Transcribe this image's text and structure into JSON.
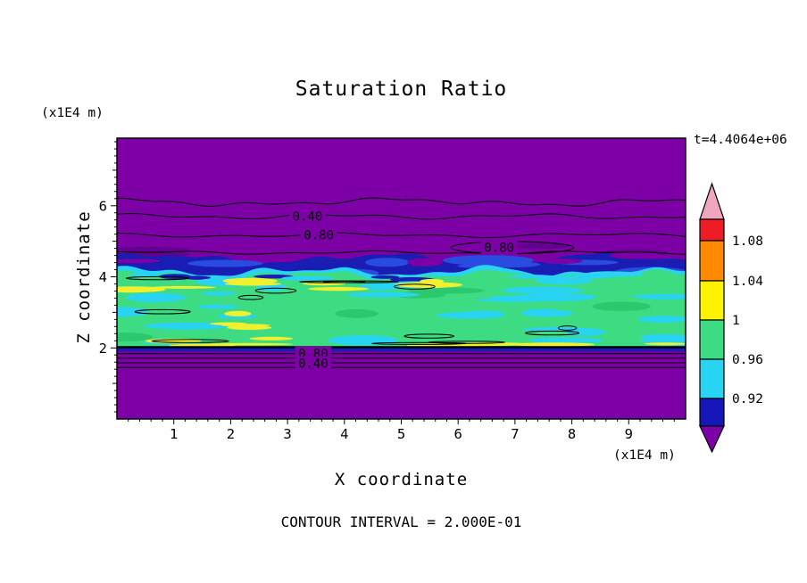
{
  "chart_data": {
    "type": "contour",
    "title": "Saturation Ratio",
    "xlabel": "X coordinate",
    "ylabel": "Z coordinate",
    "x_axis_unit": "(x1E4 m)",
    "y_axis_unit": "(x1E4 m)",
    "time_annotation": "t=4.4064e+06",
    "footnote": "CONTOUR INTERVAL = 2.000E-01",
    "contour_interval": 0.2,
    "x_range": [
      0,
      10
    ],
    "z_range": [
      0,
      7.9
    ],
    "x_ticks": [
      1,
      2,
      3,
      4,
      5,
      6,
      7,
      8,
      9
    ],
    "z_ticks": [
      2,
      4,
      6
    ],
    "line_contour_labels": [
      {
        "text": "0.40",
        "u": 3.35,
        "z": 5.7
      },
      {
        "text": "0.80",
        "u": 3.55,
        "z": 5.17
      },
      {
        "text": "0.80",
        "u": 6.72,
        "z": 4.82
      },
      {
        "text": "0.80",
        "u": 3.45,
        "z": 1.84
      },
      {
        "text": "0.40",
        "u": 3.45,
        "z": 1.56
      }
    ],
    "upper_contour_line_levels": [
      6.1,
      5.7,
      5.17,
      4.68
    ],
    "lower_contour_line_levels": [
      2.02,
      1.84,
      1.71,
      1.58,
      1.45
    ],
    "bands": {
      "green_band_z": [
        2.03,
        4.05
      ],
      "navy_band_z": [
        3.8,
        4.55
      ],
      "bottom_navy_strip_z": [
        1.9,
        2.01
      ]
    },
    "field_colors": {
      "background_purple": "#7D00A6",
      "dark_purple": "#62008F",
      "navy_band": "#1A1DB4",
      "royal_blue": "#2A4BE0",
      "cyan": "#29D3F2",
      "green": "#3EDC82",
      "teal_green": "#2BC86E",
      "yellow": "#F0F02E"
    },
    "colorbar": {
      "tick_labels": [
        "1.08",
        "1.04",
        "1",
        "0.96",
        "0.92"
      ],
      "colors_top_to_bottom": [
        "#F0A6BC",
        "#EE1C24",
        "#FF8A00",
        "#FFF200",
        "#3EDC82",
        "#29D3F2",
        "#1617B8",
        "#7D00A6"
      ]
    }
  }
}
